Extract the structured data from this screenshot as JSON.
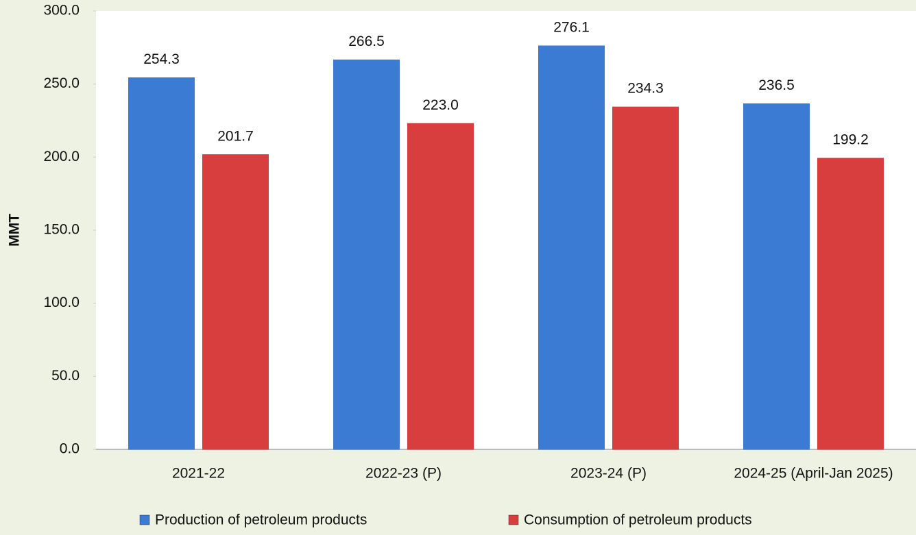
{
  "chart_data": {
    "type": "bar",
    "y_label": "MMT",
    "categories": [
      "2021-22",
      "2022-23 (P)",
      "2023-24 (P)",
      "2024-25 (April-Jan 2025)"
    ],
    "series": [
      {
        "name": "Production of petroleum products",
        "color": "#3b7bd4",
        "values": [
          254.3,
          266.5,
          276.1,
          236.5
        ],
        "value_labels": [
          "254.3",
          "266.5",
          "276.1",
          "236.5"
        ]
      },
      {
        "name": "Consumption of petroleum products",
        "color": "#d83e3e",
        "values": [
          201.7,
          223.0,
          234.3,
          199.2
        ],
        "value_labels": [
          "201.7",
          "223.0",
          "234.3",
          "199.2"
        ]
      }
    ],
    "ylim": [
      0,
      300
    ],
    "yticks": [
      {
        "value": 0,
        "label": "0.0"
      },
      {
        "value": 50,
        "label": "50.0"
      },
      {
        "value": 100,
        "label": "100.0"
      },
      {
        "value": 150,
        "label": "150.0"
      },
      {
        "value": 200,
        "label": "200.0"
      },
      {
        "value": 250,
        "label": "250.0"
      },
      {
        "value": 300,
        "label": "300.0"
      }
    ],
    "grid": false,
    "legend": "bottom"
  }
}
